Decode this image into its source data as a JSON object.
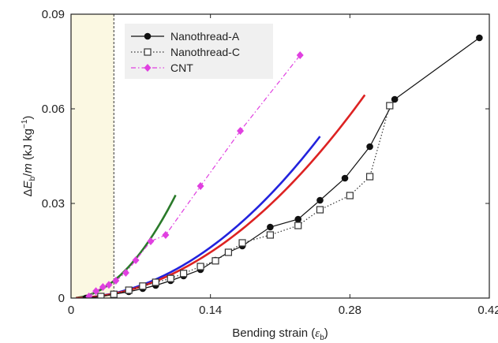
{
  "chart_data": {
    "type": "line",
    "xlabel_main": "Bending strain (",
    "xlabel_sym": "ε",
    "xlabel_sub": "b",
    "xlabel_close": ")",
    "ylabel_delta": "Δ",
    "ylabel_E": "E",
    "ylabel_sub": "b",
    "ylabel_slash": "/",
    "ylabel_m": "m",
    "ylabel_unit_open": " (kJ kg",
    "ylabel_unit_sup": "−1",
    "ylabel_unit_close": ")",
    "xlim": [
      0,
      0.42
    ],
    "ylim": [
      0,
      0.09
    ],
    "x_ticks": [
      0,
      0.14,
      0.28,
      0.42
    ],
    "x_tick_labels": [
      "0",
      "0.14",
      "0.28",
      "0.42"
    ],
    "y_ticks": [
      0,
      0.03,
      0.06,
      0.09
    ],
    "y_tick_labels": [
      "0",
      "0.03",
      "0.06",
      "0.09"
    ],
    "legend_position": "top-left",
    "shaded_region": {
      "x": [
        0,
        0.043
      ],
      "color": "#fbf8e2"
    },
    "dashed_line_x": 0.043,
    "series": [
      {
        "name": "Nanothread-A",
        "color": "#111111",
        "marker": "filled-circle",
        "line": "solid",
        "x": [
          0.015,
          0.03,
          0.043,
          0.058,
          0.072,
          0.085,
          0.1,
          0.113,
          0.13,
          0.145,
          0.158,
          0.172,
          0.2,
          0.228,
          0.25,
          0.275,
          0.3,
          0.325,
          0.41
        ],
        "y": [
          0.0,
          0.0005,
          0.0012,
          0.002,
          0.003,
          0.004,
          0.0055,
          0.007,
          0.009,
          0.012,
          0.0145,
          0.0165,
          0.0225,
          0.025,
          0.031,
          0.038,
          0.048,
          0.063,
          0.0825
        ]
      },
      {
        "name": "Nanothread-C",
        "color": "#333333",
        "marker": "open-square",
        "line": "dotted",
        "x": [
          0.03,
          0.043,
          0.058,
          0.072,
          0.085,
          0.1,
          0.113,
          0.13,
          0.145,
          0.158,
          0.172,
          0.2,
          0.228,
          0.25,
          0.28,
          0.3,
          0.32
        ],
        "y": [
          0.0005,
          0.0012,
          0.0025,
          0.0038,
          0.005,
          0.0062,
          0.0078,
          0.01,
          0.0118,
          0.0145,
          0.0175,
          0.02,
          0.023,
          0.028,
          0.0325,
          0.0385,
          0.061
        ]
      },
      {
        "name": "CNT",
        "color": "#e040e0",
        "marker": "filled-diamond",
        "line": "dash-dot",
        "x": [
          0.018,
          0.025,
          0.032,
          0.038,
          0.045,
          0.055,
          0.065,
          0.08,
          0.095,
          0.13,
          0.17,
          0.23
        ],
        "y": [
          0.0005,
          0.0022,
          0.0035,
          0.0042,
          0.0055,
          0.008,
          0.012,
          0.018,
          0.02,
          0.0355,
          0.053,
          0.077
        ]
      },
      {
        "color": "#2a7a2a",
        "marker": "none",
        "line": "solid",
        "fit": "power",
        "a": 2.96,
        "p": 2.0,
        "x0": 0.005,
        "x1": 0.105
      },
      {
        "color": "#2222dd",
        "marker": "none",
        "line": "solid",
        "fit": "power",
        "a": 0.82,
        "p": 2.0,
        "x0": 0.005,
        "x1": 0.25
      },
      {
        "color": "#dd2222",
        "marker": "none",
        "line": "solid",
        "fit": "power",
        "a": 0.74,
        "p": 2.0,
        "x0": 0.005,
        "x1": 0.295
      }
    ]
  }
}
